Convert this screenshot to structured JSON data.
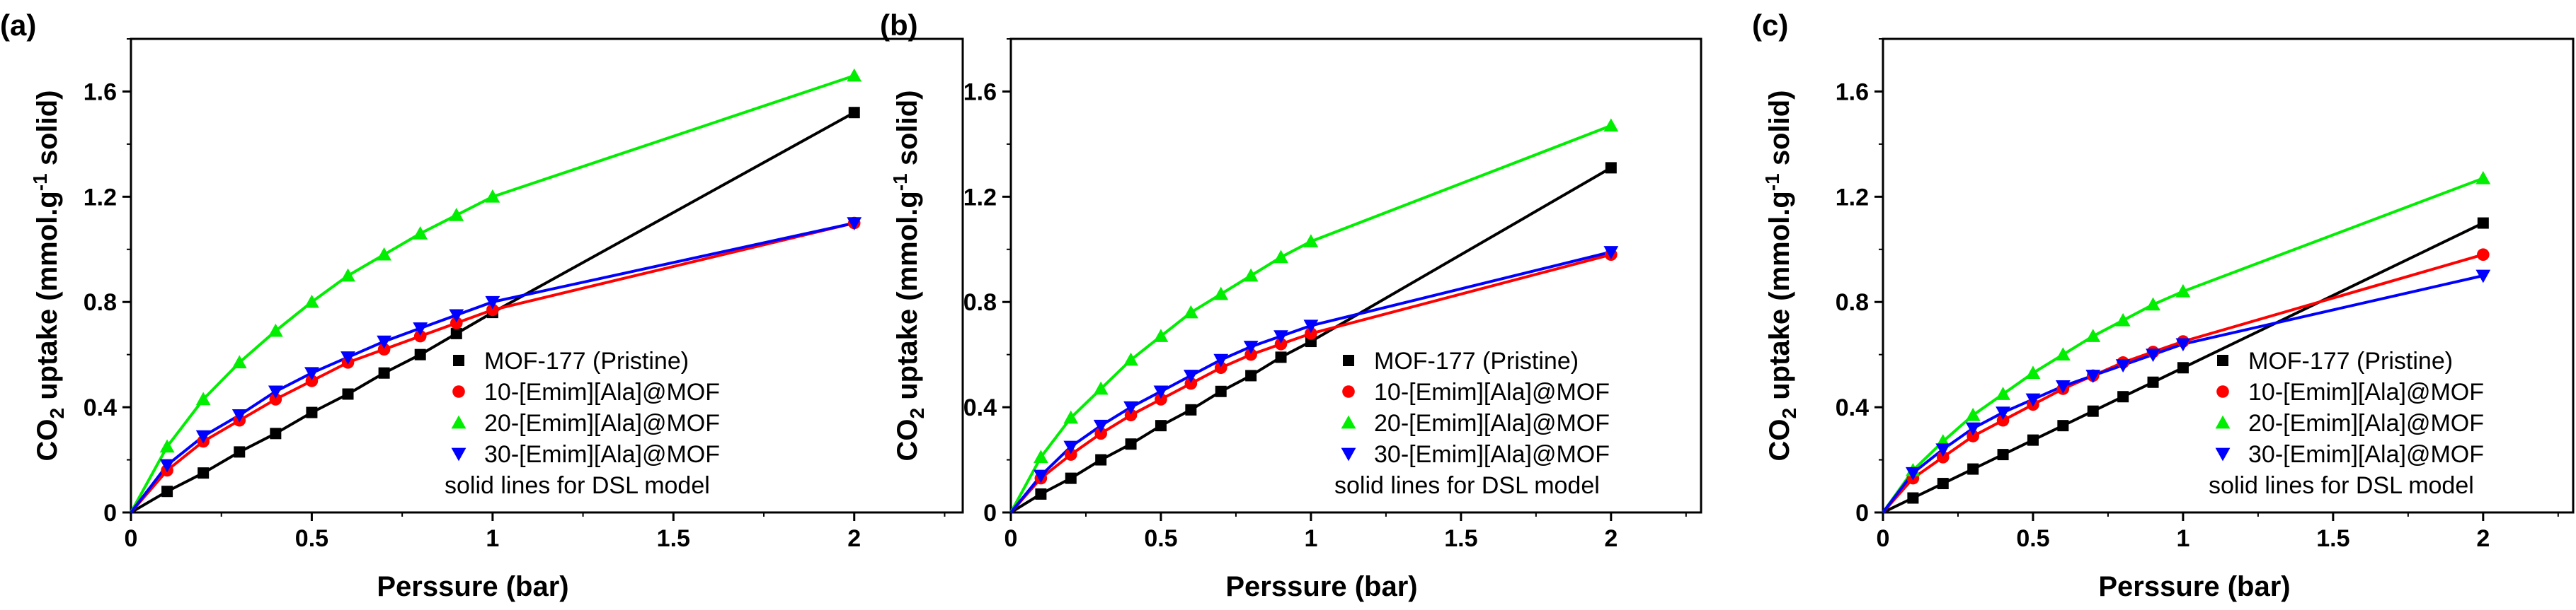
{
  "figure": {
    "panel_labels": [
      "(a)",
      "(b)",
      "(c)"
    ],
    "xlabel": "Perssure (bar)",
    "ylabel_parts": {
      "pre": "CO",
      "sub": "2",
      "mid": " uptake (mmol.g",
      "sup": "-1",
      "post": " solid)"
    },
    "legend_note": "solid lines for DSL model"
  },
  "chart_data": [
    {
      "type": "scatter",
      "panel": "(a)",
      "xlabel": "Perssure (bar)",
      "ylabel": "CO2 uptake (mmol.g-1 solid)",
      "xlim": [
        0,
        2.3
      ],
      "ylim": [
        0,
        1.8
      ],
      "xticks": [
        0,
        0.5,
        1,
        1.5,
        2
      ],
      "yticks": [
        0,
        0.4,
        0.8,
        1.2,
        1.6
      ],
      "x_tick_labels": [
        "0",
        "0.5",
        "1",
        "1.5",
        "2"
      ],
      "y_tick_labels": [
        "0",
        "0.4",
        "0.8",
        "1.2",
        "1.6"
      ],
      "x": [
        0,
        0.1,
        0.2,
        0.3,
        0.4,
        0.5,
        0.6,
        0.7,
        0.8,
        0.9,
        1.0,
        2.0
      ],
      "legend_position": "bottom-right",
      "series": [
        {
          "name": "MOF-177 (Pristine)",
          "marker": "square",
          "color": "#000000",
          "values": [
            0,
            0.08,
            0.15,
            0.23,
            0.3,
            0.38,
            0.45,
            0.53,
            0.6,
            0.68,
            0.76,
            1.52
          ]
        },
        {
          "name": "10-[Emim][Ala]@MOF",
          "marker": "circle",
          "color": "#ff0000",
          "values": [
            0,
            0.16,
            0.27,
            0.35,
            0.43,
            0.5,
            0.57,
            0.62,
            0.67,
            0.72,
            0.77,
            1.1
          ]
        },
        {
          "name": "20-[Emim][Ala]@MOF",
          "marker": "triangle-up",
          "color": "#00ee00",
          "values": [
            0,
            0.25,
            0.43,
            0.57,
            0.69,
            0.8,
            0.9,
            0.98,
            1.06,
            1.13,
            1.2,
            1.66
          ]
        },
        {
          "name": "30-[Emim][Ala]@MOF",
          "marker": "triangle-down",
          "color": "#0000ff",
          "values": [
            0,
            0.18,
            0.29,
            0.37,
            0.46,
            0.53,
            0.59,
            0.65,
            0.7,
            0.75,
            0.8,
            1.1
          ]
        }
      ]
    },
    {
      "type": "scatter",
      "panel": "(b)",
      "xlabel": "Perssure (bar)",
      "ylabel": "CO2 uptake (mmol.g-1 solid)",
      "xlim": [
        0,
        2.3
      ],
      "ylim": [
        0,
        1.8
      ],
      "xticks": [
        0,
        0.5,
        1,
        1.5,
        2
      ],
      "yticks": [
        0,
        0.4,
        0.8,
        1.2,
        1.6
      ],
      "x_tick_labels": [
        "0",
        "0.5",
        "1",
        "1.5",
        "2"
      ],
      "y_tick_labels": [
        "0",
        "0.4",
        "0.8",
        "1.2",
        "1.6"
      ],
      "x": [
        0,
        0.1,
        0.2,
        0.3,
        0.4,
        0.5,
        0.6,
        0.7,
        0.8,
        0.9,
        1.0,
        2.0
      ],
      "legend_position": "bottom-right",
      "series": [
        {
          "name": "MOF-177 (Pristine)",
          "marker": "square",
          "color": "#000000",
          "values": [
            0,
            0.07,
            0.13,
            0.2,
            0.26,
            0.33,
            0.39,
            0.46,
            0.52,
            0.59,
            0.65,
            1.31
          ]
        },
        {
          "name": "10-[Emim][Ala]@MOF",
          "marker": "circle",
          "color": "#ff0000",
          "values": [
            0,
            0.13,
            0.22,
            0.3,
            0.37,
            0.43,
            0.49,
            0.55,
            0.6,
            0.64,
            0.68,
            0.98
          ]
        },
        {
          "name": "20-[Emim][Ala]@MOF",
          "marker": "triangle-up",
          "color": "#00ee00",
          "values": [
            0,
            0.21,
            0.36,
            0.47,
            0.58,
            0.67,
            0.76,
            0.83,
            0.9,
            0.97,
            1.03,
            1.47
          ]
        },
        {
          "name": "30-[Emim][Ala]@MOF",
          "marker": "triangle-down",
          "color": "#0000ff",
          "values": [
            0,
            0.14,
            0.25,
            0.33,
            0.4,
            0.46,
            0.52,
            0.58,
            0.63,
            0.67,
            0.71,
            0.99
          ]
        }
      ]
    },
    {
      "type": "scatter",
      "panel": "(c)",
      "xlabel": "Perssure (bar)",
      "ylabel": "CO2 uptake (mmol.g-1 solid)",
      "xlim": [
        0,
        2.3
      ],
      "ylim": [
        0,
        1.8
      ],
      "xticks": [
        0,
        0.5,
        1,
        1.5,
        2
      ],
      "yticks": [
        0,
        0.4,
        0.8,
        1.2,
        1.6
      ],
      "x_tick_labels": [
        "0",
        "0.5",
        "1",
        "1.5",
        "2"
      ],
      "y_tick_labels": [
        "0",
        "0.4",
        "0.8",
        "1.2",
        "1.6"
      ],
      "x": [
        0,
        0.1,
        0.2,
        0.3,
        0.4,
        0.5,
        0.6,
        0.7,
        0.8,
        0.9,
        1.0,
        2.0
      ],
      "legend_position": "bottom-right",
      "series": [
        {
          "name": "MOF-177 (Pristine)",
          "marker": "square",
          "color": "#000000",
          "values": [
            0,
            0.055,
            0.11,
            0.165,
            0.22,
            0.275,
            0.33,
            0.385,
            0.44,
            0.495,
            0.55,
            1.1
          ]
        },
        {
          "name": "10-[Emim][Ala]@MOF",
          "marker": "circle",
          "color": "#ff0000",
          "values": [
            0,
            0.13,
            0.21,
            0.29,
            0.35,
            0.41,
            0.47,
            0.52,
            0.57,
            0.61,
            0.65,
            0.98
          ]
        },
        {
          "name": "20-[Emim][Ala]@MOF",
          "marker": "triangle-up",
          "color": "#00ee00",
          "values": [
            0,
            0.16,
            0.27,
            0.37,
            0.45,
            0.53,
            0.6,
            0.67,
            0.73,
            0.79,
            0.84,
            1.27
          ]
        },
        {
          "name": "30-[Emim][Ala]@MOF",
          "marker": "triangle-down",
          "color": "#0000ff",
          "values": [
            0,
            0.15,
            0.24,
            0.32,
            0.38,
            0.43,
            0.48,
            0.52,
            0.56,
            0.6,
            0.64,
            0.9
          ]
        }
      ]
    }
  ]
}
